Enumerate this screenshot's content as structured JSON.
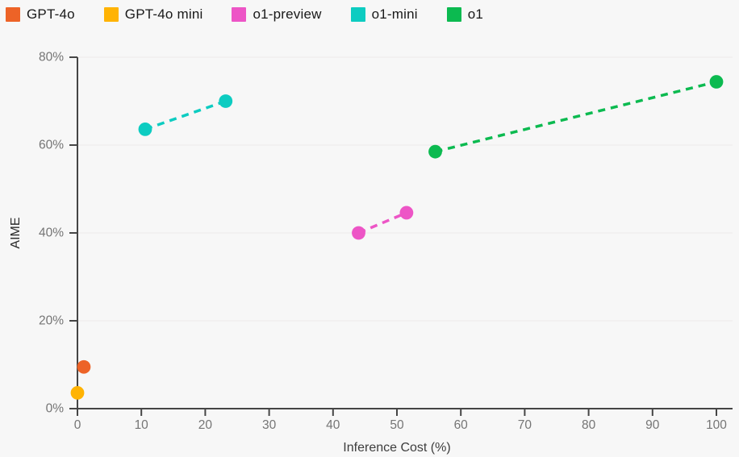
{
  "legend": {
    "items": [
      {
        "label": "GPT-4o",
        "color": "#ED6327"
      },
      {
        "label": "GPT-4o mini",
        "color": "#FFB303"
      },
      {
        "label": "o1-preview",
        "color": "#ED55C6"
      },
      {
        "label": "o1-mini",
        "color": "#0DCCC1"
      },
      {
        "label": "o1",
        "color": "#0CBA50"
      }
    ]
  },
  "chart_data": {
    "type": "scatter",
    "title": "",
    "xlabel": "Inference Cost (%)",
    "ylabel": "AIME",
    "xlim": [
      0,
      100
    ],
    "ylim": [
      0,
      80
    ],
    "grid": "horizontal",
    "legend_position": "top-left",
    "x_ticks": [
      {
        "value": 0,
        "label": "0"
      },
      {
        "value": 10,
        "label": "10"
      },
      {
        "value": 20,
        "label": "20"
      },
      {
        "value": 30,
        "label": "30"
      },
      {
        "value": 40,
        "label": "40"
      },
      {
        "value": 50,
        "label": "50"
      },
      {
        "value": 60,
        "label": "60"
      },
      {
        "value": 70,
        "label": "70"
      },
      {
        "value": 80,
        "label": "80"
      },
      {
        "value": 90,
        "label": "90"
      },
      {
        "value": 100,
        "label": "100"
      }
    ],
    "y_ticks": [
      {
        "value": 0,
        "label": "0%"
      },
      {
        "value": 20,
        "label": "20%"
      },
      {
        "value": 40,
        "label": "40%"
      },
      {
        "value": 60,
        "label": "60%"
      },
      {
        "value": 80,
        "label": "80%"
      }
    ],
    "series": [
      {
        "name": "GPT-4o",
        "color": "#ED6327",
        "line": "none",
        "points": [
          {
            "x": 1,
            "y": 9.5
          }
        ]
      },
      {
        "name": "GPT-4o mini",
        "color": "#FFB303",
        "line": "none",
        "points": [
          {
            "x": 0,
            "y": 3.6
          }
        ]
      },
      {
        "name": "o1-preview",
        "color": "#ED55C6",
        "line": "dashed",
        "points": [
          {
            "x": 44,
            "y": 40.0
          },
          {
            "x": 51.5,
            "y": 44.6
          }
        ]
      },
      {
        "name": "o1-mini",
        "color": "#0DCCC1",
        "line": "dashed",
        "points": [
          {
            "x": 10.6,
            "y": 63.6
          },
          {
            "x": 23.2,
            "y": 70.0
          }
        ]
      },
      {
        "name": "o1",
        "color": "#0CBA50",
        "line": "dashed",
        "points": [
          {
            "x": 56,
            "y": 58.5
          },
          {
            "x": 100,
            "y": 74.4
          }
        ]
      }
    ]
  },
  "colors": {
    "background": "#f7f7f7",
    "axis": "#454545",
    "grid": "#ece9ea",
    "tick_label": "#757575",
    "x_axis_title": "#3d3d3d",
    "y_axis_title": "#2b2b2b",
    "legend_text": "#191919"
  }
}
